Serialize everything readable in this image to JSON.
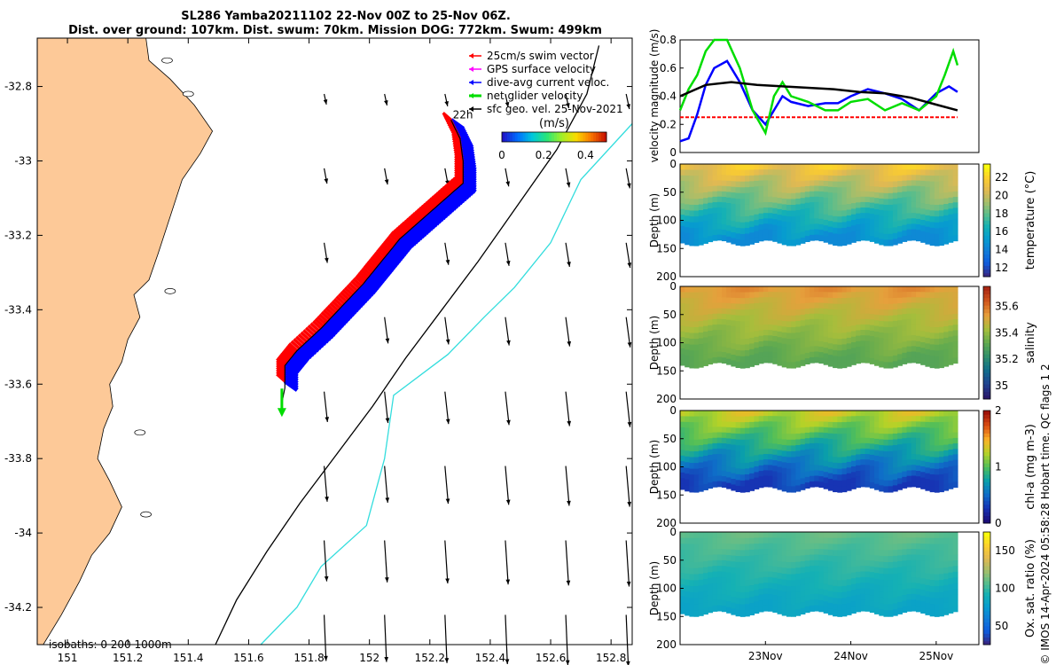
{
  "title_line1": "SL286 Yamba20211102 22-Nov 00Z to 25-Nov 06Z.",
  "title_line2": "Dist. over ground: 107km. Dist. swum: 70km. Mission DOG: 772km. Swum: 499km",
  "copyright": "© IMOS 14-Apr-2024 05:58:28 Hobart time. QC flags 1  2",
  "colors": {
    "land": "#fdc998",
    "swim_vector": "#ff0000",
    "gps_velocity": "#ff00ff",
    "current_velocity": "#0000ff",
    "net_velocity": "#00dd00",
    "geo_velocity": "#000000",
    "isobath_200": "#000000",
    "isobath_1000": "#33dddd"
  },
  "chart_data": [
    {
      "type": "map",
      "name": "track-map",
      "xlim": [
        150.9,
        152.87
      ],
      "ylim": [
        -34.3,
        -32.67
      ],
      "x_ticks": [
        "151",
        "151.2",
        "151.4",
        "151.6",
        "151.8",
        "152",
        "152.2",
        "152.4",
        "152.6",
        "152.8"
      ],
      "x_tick_values": [
        151,
        151.2,
        151.4,
        151.6,
        151.8,
        152,
        152.2,
        152.4,
        152.6,
        152.8
      ],
      "y_ticks": [
        "-32.8",
        "-33",
        "-33.2",
        "-33.4",
        "-33.6",
        "-33.8",
        "-34",
        "-34.2"
      ],
      "y_tick_values": [
        -32.8,
        -33,
        -33.2,
        -33.4,
        -33.6,
        -33.8,
        -34,
        -34.2
      ],
      "legend": [
        {
          "label": "25cm/s swim vector",
          "color_key": "swim_vector"
        },
        {
          "label": "GPS surface velocity",
          "color_key": "gps_velocity"
        },
        {
          "label": "dive-avg current veloc.",
          "color_key": "current_velocity"
        },
        {
          "label": "net glider velocity",
          "color_key": "net_velocity"
        },
        {
          "label": "sfc geo. vel. 25-Nov-2021",
          "color_key": "geo_velocity"
        }
      ],
      "colorbar": {
        "label": "(m/s)",
        "ticks": [
          "0",
          "0.2",
          "0.4"
        ],
        "tick_values": [
          0,
          0.2,
          0.4
        ],
        "range": [
          0,
          0.5
        ]
      },
      "start_label": "22h",
      "isobath_label": "isobaths: 0   200  1000m",
      "glider_track": [
        [
          152.27,
          -32.89
        ],
        [
          152.3,
          -32.94
        ],
        [
          152.31,
          -33
        ],
        [
          152.31,
          -33.06
        ],
        [
          152.24,
          -33.11
        ],
        [
          152.17,
          -33.16
        ],
        [
          152.1,
          -33.21
        ],
        [
          152.04,
          -33.27
        ],
        [
          151.98,
          -33.33
        ],
        [
          151.91,
          -33.39
        ],
        [
          151.84,
          -33.45
        ],
        [
          151.76,
          -33.51
        ],
        [
          151.72,
          -33.55
        ],
        [
          151.72,
          -33.61
        ],
        [
          151.71,
          -33.65
        ]
      ],
      "isobath_200m": [
        [
          152.76,
          -32.69
        ],
        [
          152.72,
          -32.82
        ],
        [
          152.62,
          -32.97
        ],
        [
          152.49,
          -33.12
        ],
        [
          152.36,
          -33.27
        ],
        [
          152.24,
          -33.4
        ],
        [
          152.12,
          -33.53
        ],
        [
          152.01,
          -33.66
        ],
        [
          151.89,
          -33.79
        ],
        [
          151.77,
          -33.92
        ],
        [
          151.66,
          -34.05
        ],
        [
          151.56,
          -34.18
        ],
        [
          151.49,
          -34.3
        ]
      ],
      "isobath_1000m": [
        [
          152.87,
          -32.9
        ],
        [
          152.7,
          -33.05
        ],
        [
          152.6,
          -33.22
        ],
        [
          152.48,
          -33.34
        ],
        [
          152.38,
          -33.42
        ],
        [
          152.26,
          -33.52
        ],
        [
          152.08,
          -33.63
        ],
        [
          152.05,
          -33.8
        ],
        [
          151.99,
          -33.98
        ],
        [
          151.84,
          -34.09
        ],
        [
          151.76,
          -34.2
        ],
        [
          151.64,
          -34.3
        ]
      ]
    },
    {
      "type": "line",
      "name": "velocity-magnitude",
      "ylabel": "velocity magnitude (m/s)",
      "ylim": [
        0,
        0.8
      ],
      "y_ticks": [
        "0",
        "0.2",
        "0.4",
        "0.6",
        "0.8"
      ],
      "y_tick_values": [
        0,
        0.2,
        0.4,
        0.6,
        0.8
      ],
      "xlim_days": [
        22.0,
        25.5
      ],
      "series": [
        {
          "color_key": "swim_vector",
          "style": "dashed",
          "x": [
            22.0,
            25.25
          ],
          "y": [
            0.25,
            0.25
          ]
        },
        {
          "color_key": "current_velocity",
          "x": [
            22.0,
            22.1,
            22.2,
            22.3,
            22.4,
            22.55,
            22.7,
            22.85,
            23.0,
            23.1,
            23.2,
            23.3,
            23.5,
            23.7,
            23.85,
            24.0,
            24.2,
            24.4,
            24.6,
            24.8,
            25.0,
            25.15,
            25.25
          ],
          "y": [
            0.08,
            0.1,
            0.27,
            0.48,
            0.6,
            0.65,
            0.5,
            0.3,
            0.2,
            0.3,
            0.4,
            0.36,
            0.33,
            0.35,
            0.35,
            0.4,
            0.45,
            0.42,
            0.38,
            0.3,
            0.42,
            0.47,
            0.43
          ]
        },
        {
          "color_key": "net_velocity",
          "x": [
            22.0,
            22.1,
            22.2,
            22.3,
            22.4,
            22.55,
            22.7,
            22.85,
            23.0,
            23.1,
            23.2,
            23.3,
            23.5,
            23.7,
            23.85,
            24.0,
            24.2,
            24.4,
            24.6,
            24.8,
            25.0,
            25.1,
            25.2,
            25.25
          ],
          "y": [
            0.3,
            0.45,
            0.55,
            0.72,
            0.8,
            0.8,
            0.6,
            0.3,
            0.14,
            0.4,
            0.5,
            0.4,
            0.36,
            0.3,
            0.3,
            0.36,
            0.38,
            0.3,
            0.35,
            0.3,
            0.4,
            0.55,
            0.72,
            0.62
          ]
        },
        {
          "color_key": "geo_velocity",
          "x": [
            22.0,
            22.3,
            22.6,
            22.9,
            23.2,
            23.5,
            23.8,
            24.1,
            24.4,
            24.7,
            25.0,
            25.25
          ],
          "y": [
            0.4,
            0.48,
            0.5,
            0.48,
            0.47,
            0.46,
            0.45,
            0.43,
            0.42,
            0.39,
            0.34,
            0.3
          ]
        }
      ]
    },
    {
      "type": "heatmap",
      "name": "temperature-section",
      "ylabel": "Depth (m)",
      "clabel": "temperature (°C)",
      "ylim": [
        200,
        0
      ],
      "y_ticks": [
        "0",
        "50",
        "100",
        "150",
        "200"
      ],
      "y_tick_values": [
        0,
        50,
        100,
        150,
        200
      ],
      "clim": [
        11,
        23.5
      ],
      "c_ticks": [
        "12",
        "14",
        "16",
        "18",
        "20",
        "22"
      ],
      "c_tick_values": [
        12,
        14,
        16,
        18,
        20,
        22
      ],
      "colormap": "parula",
      "surface_value": 21.5,
      "deep_value": 14.3,
      "bottom_depth": 140
    },
    {
      "type": "heatmap",
      "name": "salinity-section",
      "ylabel": "Depth (m)",
      "clabel": "salinity",
      "ylim": [
        200,
        0
      ],
      "y_ticks": [
        "0",
        "50",
        "100",
        "150",
        "200"
      ],
      "y_tick_values": [
        0,
        50,
        100,
        150,
        200
      ],
      "clim": [
        34.9,
        35.75
      ],
      "c_ticks": [
        "35",
        "35.2",
        "35.4",
        "35.6"
      ],
      "c_tick_values": [
        35,
        35.2,
        35.4,
        35.6
      ],
      "colormap": "haline",
      "surface_value": 35.55,
      "deep_value": 35.3,
      "bottom_depth": 140
    },
    {
      "type": "heatmap",
      "name": "chla-section",
      "ylabel": "Depth (m)",
      "clabel": "chl-a (mg m-3)",
      "ylim": [
        200,
        0
      ],
      "y_ticks": [
        "0",
        "50",
        "100",
        "150",
        "200"
      ],
      "y_tick_values": [
        0,
        50,
        100,
        150,
        200
      ],
      "clim": [
        0,
        2
      ],
      "c_ticks": [
        "0",
        "1",
        "2"
      ],
      "c_tick_values": [
        0,
        1,
        2
      ],
      "colormap": "algae",
      "surface_value": 1.3,
      "deep_value": 0.25,
      "bottom_depth": 140
    },
    {
      "type": "heatmap",
      "name": "oxygen-section",
      "ylabel": "Depth (m)",
      "clabel": "Ox. sat. ratio (%)",
      "ylim": [
        200,
        0
      ],
      "y_ticks": [
        "0",
        "50",
        "100",
        "150",
        "200"
      ],
      "y_tick_values": [
        0,
        50,
        100,
        150,
        200
      ],
      "clim": [
        25,
        175
      ],
      "c_ticks": [
        "50",
        "100",
        "150"
      ],
      "c_tick_values": [
        50,
        100,
        150
      ],
      "colormap": "parula",
      "surface_value": 110,
      "deep_value": 80,
      "bottom_depth": 145,
      "x_ticks": [
        "23Nov",
        "24Nov",
        "25Nov"
      ],
      "x_tick_values": [
        23,
        24,
        25
      ]
    }
  ]
}
